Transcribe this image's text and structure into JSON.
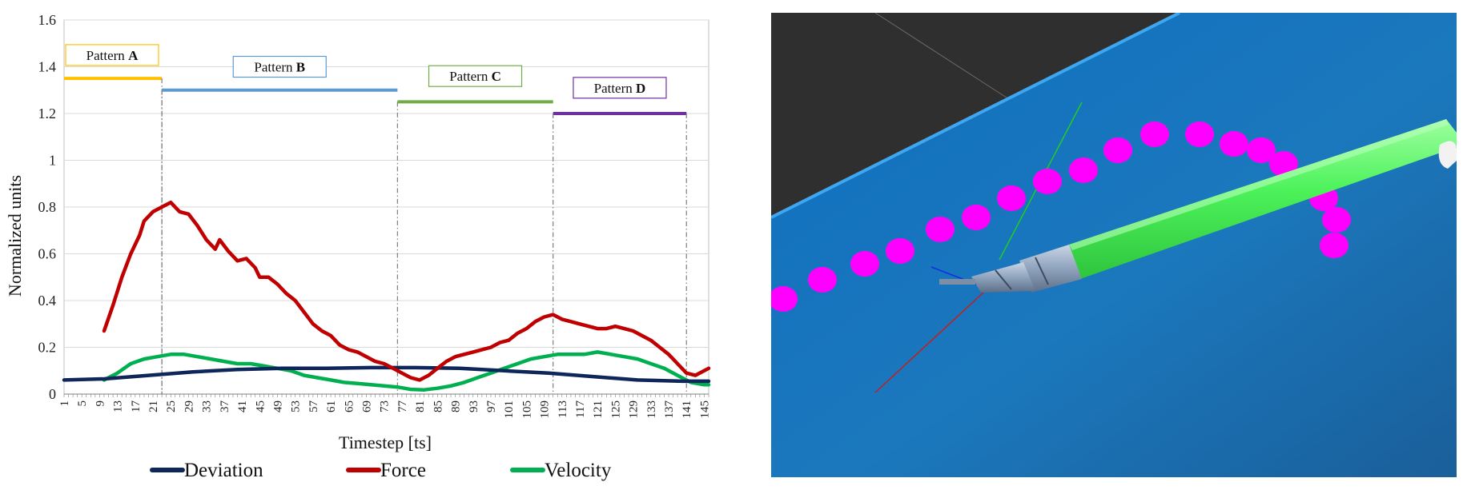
{
  "chart_data": {
    "type": "line",
    "title": "",
    "xlabel": "Timestep [ts]",
    "ylabel": "Normalized units",
    "ylim": [
      0,
      1.6
    ],
    "yticks": [
      "0",
      "0.2",
      "0.4",
      "0.6",
      "0.8",
      "1",
      "1.2",
      "1.4",
      "1.6"
    ],
    "xlim": [
      1,
      146
    ],
    "xticks": [
      "1",
      "5",
      "9",
      "13",
      "17",
      "21",
      "25",
      "29",
      "33",
      "37",
      "41",
      "45",
      "49",
      "53",
      "57",
      "61",
      "65",
      "69",
      "73",
      "77",
      "81",
      "85",
      "89",
      "93",
      "97",
      "101",
      "105",
      "109",
      "113",
      "117",
      "121",
      "125",
      "129",
      "133",
      "137",
      "141",
      "145"
    ],
    "grid": "horizontal",
    "legend_position": "bottom",
    "series": [
      {
        "name": "Deviation",
        "color": "#0e2659",
        "x": [
          1,
          10,
          20,
          30,
          40,
          50,
          60,
          70,
          80,
          90,
          100,
          110,
          120,
          130,
          140,
          146
        ],
        "values": [
          0.06,
          0.065,
          0.08,
          0.095,
          0.105,
          0.11,
          0.11,
          0.113,
          0.113,
          0.11,
          0.1,
          0.09,
          0.075,
          0.06,
          0.055,
          0.055
        ]
      },
      {
        "name": "Force",
        "color": "#c00000",
        "x": [
          10,
          12,
          14,
          16,
          18,
          19,
          21,
          23,
          25,
          27,
          29,
          31,
          33,
          35,
          36,
          38,
          40,
          42,
          44,
          45,
          47,
          49,
          51,
          53,
          55,
          57,
          59,
          61,
          63,
          65,
          67,
          69,
          71,
          73,
          75,
          77,
          79,
          81,
          83,
          85,
          87,
          89,
          91,
          93,
          95,
          97,
          99,
          101,
          103,
          105,
          107,
          109,
          111,
          113,
          115,
          117,
          119,
          121,
          123,
          125,
          127,
          129,
          131,
          133,
          135,
          137,
          139,
          141,
          143,
          145,
          146
        ],
        "values": [
          0.27,
          0.38,
          0.5,
          0.6,
          0.68,
          0.74,
          0.78,
          0.8,
          0.82,
          0.78,
          0.77,
          0.72,
          0.66,
          0.62,
          0.66,
          0.61,
          0.57,
          0.58,
          0.54,
          0.5,
          0.5,
          0.47,
          0.43,
          0.4,
          0.35,
          0.3,
          0.27,
          0.25,
          0.21,
          0.19,
          0.18,
          0.16,
          0.14,
          0.13,
          0.11,
          0.09,
          0.07,
          0.06,
          0.08,
          0.11,
          0.14,
          0.16,
          0.17,
          0.18,
          0.19,
          0.2,
          0.22,
          0.23,
          0.26,
          0.28,
          0.31,
          0.33,
          0.34,
          0.32,
          0.31,
          0.3,
          0.29,
          0.28,
          0.28,
          0.29,
          0.28,
          0.27,
          0.25,
          0.23,
          0.2,
          0.17,
          0.13,
          0.09,
          0.08,
          0.1,
          0.11
        ]
      },
      {
        "name": "Velocity",
        "color": "#00b050",
        "x": [
          10,
          13,
          16,
          19,
          22,
          25,
          28,
          31,
          34,
          37,
          40,
          43,
          46,
          49,
          52,
          55,
          58,
          61,
          64,
          67,
          70,
          73,
          76,
          79,
          82,
          85,
          88,
          91,
          94,
          97,
          100,
          103,
          106,
          109,
          112,
          115,
          118,
          121,
          124,
          127,
          130,
          133,
          136,
          139,
          142,
          145,
          146
        ],
        "values": [
          0.06,
          0.09,
          0.13,
          0.15,
          0.16,
          0.17,
          0.17,
          0.16,
          0.15,
          0.14,
          0.13,
          0.13,
          0.12,
          0.11,
          0.1,
          0.08,
          0.07,
          0.06,
          0.05,
          0.045,
          0.04,
          0.035,
          0.03,
          0.02,
          0.018,
          0.025,
          0.035,
          0.05,
          0.07,
          0.09,
          0.11,
          0.13,
          0.15,
          0.16,
          0.17,
          0.17,
          0.17,
          0.18,
          0.17,
          0.16,
          0.15,
          0.13,
          0.11,
          0.08,
          0.05,
          0.04,
          0.04
        ]
      }
    ],
    "patterns": [
      {
        "label": "Pattern",
        "letter": "A",
        "x_start": 1,
        "x_end": 23,
        "level": 1.35,
        "color": "#ffc000",
        "box_level": 1.45
      },
      {
        "label": "Pattern",
        "letter": "B",
        "x_start": 23,
        "x_end": 76,
        "level": 1.3,
        "color": "#5b9bd5",
        "box_level": 1.4
      },
      {
        "label": "Pattern",
        "letter": "C",
        "x_start": 76,
        "x_end": 111,
        "level": 1.25,
        "color": "#70ad47",
        "box_level": 1.36
      },
      {
        "label": "Pattern",
        "letter": "D",
        "x_start": 111,
        "x_end": 141,
        "level": 1.2,
        "color": "#7030a0",
        "box_level": 1.31
      }
    ]
  },
  "simulation": {
    "table_color": "#1a73b8",
    "background_color": "#2f2f2f",
    "marker_color": "#ff00ff",
    "shaft_color": "#4cf25a",
    "marker_count": 16
  }
}
